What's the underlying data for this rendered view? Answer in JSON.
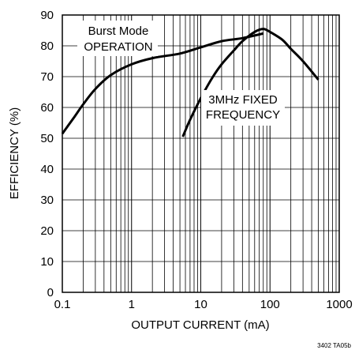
{
  "chart_data": {
    "type": "line",
    "xlabel": "OUTPUT CURRENT (mA)",
    "ylabel": "EFFICIENCY (%)",
    "xscale": "log",
    "xlim": [
      0.1,
      1000
    ],
    "ylim": [
      0,
      90
    ],
    "grid": true,
    "x_ticks": [
      "0.1",
      "1",
      "10",
      "100",
      "1000"
    ],
    "y_ticks": [
      "0",
      "10",
      "20",
      "30",
      "40",
      "50",
      "60",
      "70",
      "80",
      "90"
    ],
    "series": [
      {
        "name": "Burst Mode OPERATION",
        "x": [
          0.1,
          0.15,
          0.2,
          0.3,
          0.5,
          1,
          2,
          5,
          10,
          20,
          40,
          80
        ],
        "y": [
          51.5,
          57,
          61,
          66,
          70.5,
          74,
          76,
          77.5,
          79.5,
          81.5,
          82.5,
          84
        ]
      },
      {
        "name": "3MHz FIXED FREQUENCY",
        "x": [
          5.5,
          7,
          10,
          15,
          20,
          30,
          40,
          60,
          80,
          100,
          150,
          200,
          300,
          500
        ],
        "y": [
          50.5,
          56,
          63,
          70,
          74,
          78.5,
          81.5,
          84.5,
          85.5,
          84.5,
          82,
          79,
          75,
          69
        ]
      }
    ],
    "annotations": [
      "Burst Mode",
      "OPERATION",
      "3MHz FIXED",
      "FREQUENCY"
    ],
    "figure_code": "3402 TA05b"
  }
}
